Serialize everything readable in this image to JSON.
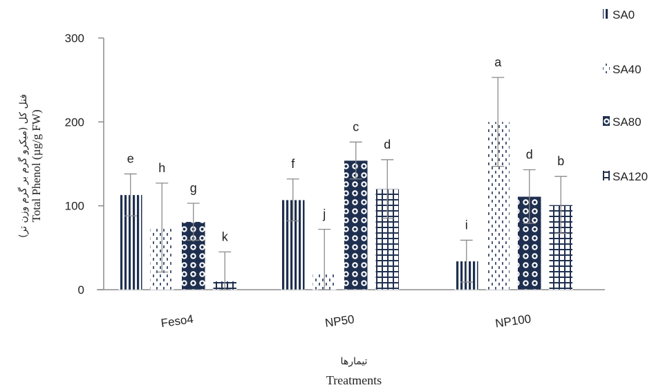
{
  "chart_data": {
    "type": "bar",
    "categories": [
      "Feso4",
      "NP50",
      "NP100"
    ],
    "series": [
      {
        "name": "SA0",
        "pattern": "vertical-lines",
        "values": [
          113,
          107,
          34
        ],
        "errors": [
          25,
          25,
          25
        ],
        "letters": [
          "e",
          "f",
          "i"
        ]
      },
      {
        "name": "SA40",
        "pattern": "dashes",
        "values": [
          74,
          20,
          200
        ],
        "errors": [
          53,
          52,
          53
        ],
        "letters": [
          "h",
          "j",
          "a"
        ]
      },
      {
        "name": "SA80",
        "pattern": "diamonds",
        "values": [
          81,
          154,
          111
        ],
        "errors": [
          22,
          22,
          32
        ],
        "letters": [
          "g",
          "c",
          "d"
        ]
      },
      {
        "name": "SA120",
        "pattern": "grid",
        "values": [
          10,
          120,
          101
        ],
        "errors": [
          35,
          35,
          34
        ],
        "letters": [
          "k",
          "d",
          "b"
        ]
      }
    ],
    "ylabel": "Total Phenol (µg/g FW)",
    "ylabel_fa": "فنل کل (میکرو گرم بر گرم وزن تر)",
    "xlabel": "Treatments",
    "xlabel_fa": "تیمارها",
    "ylim": [
      0,
      300
    ],
    "yticks": [
      0,
      100,
      200,
      300
    ],
    "grid": false,
    "legend_position": "right",
    "bar_color": "#1f2f4f"
  }
}
